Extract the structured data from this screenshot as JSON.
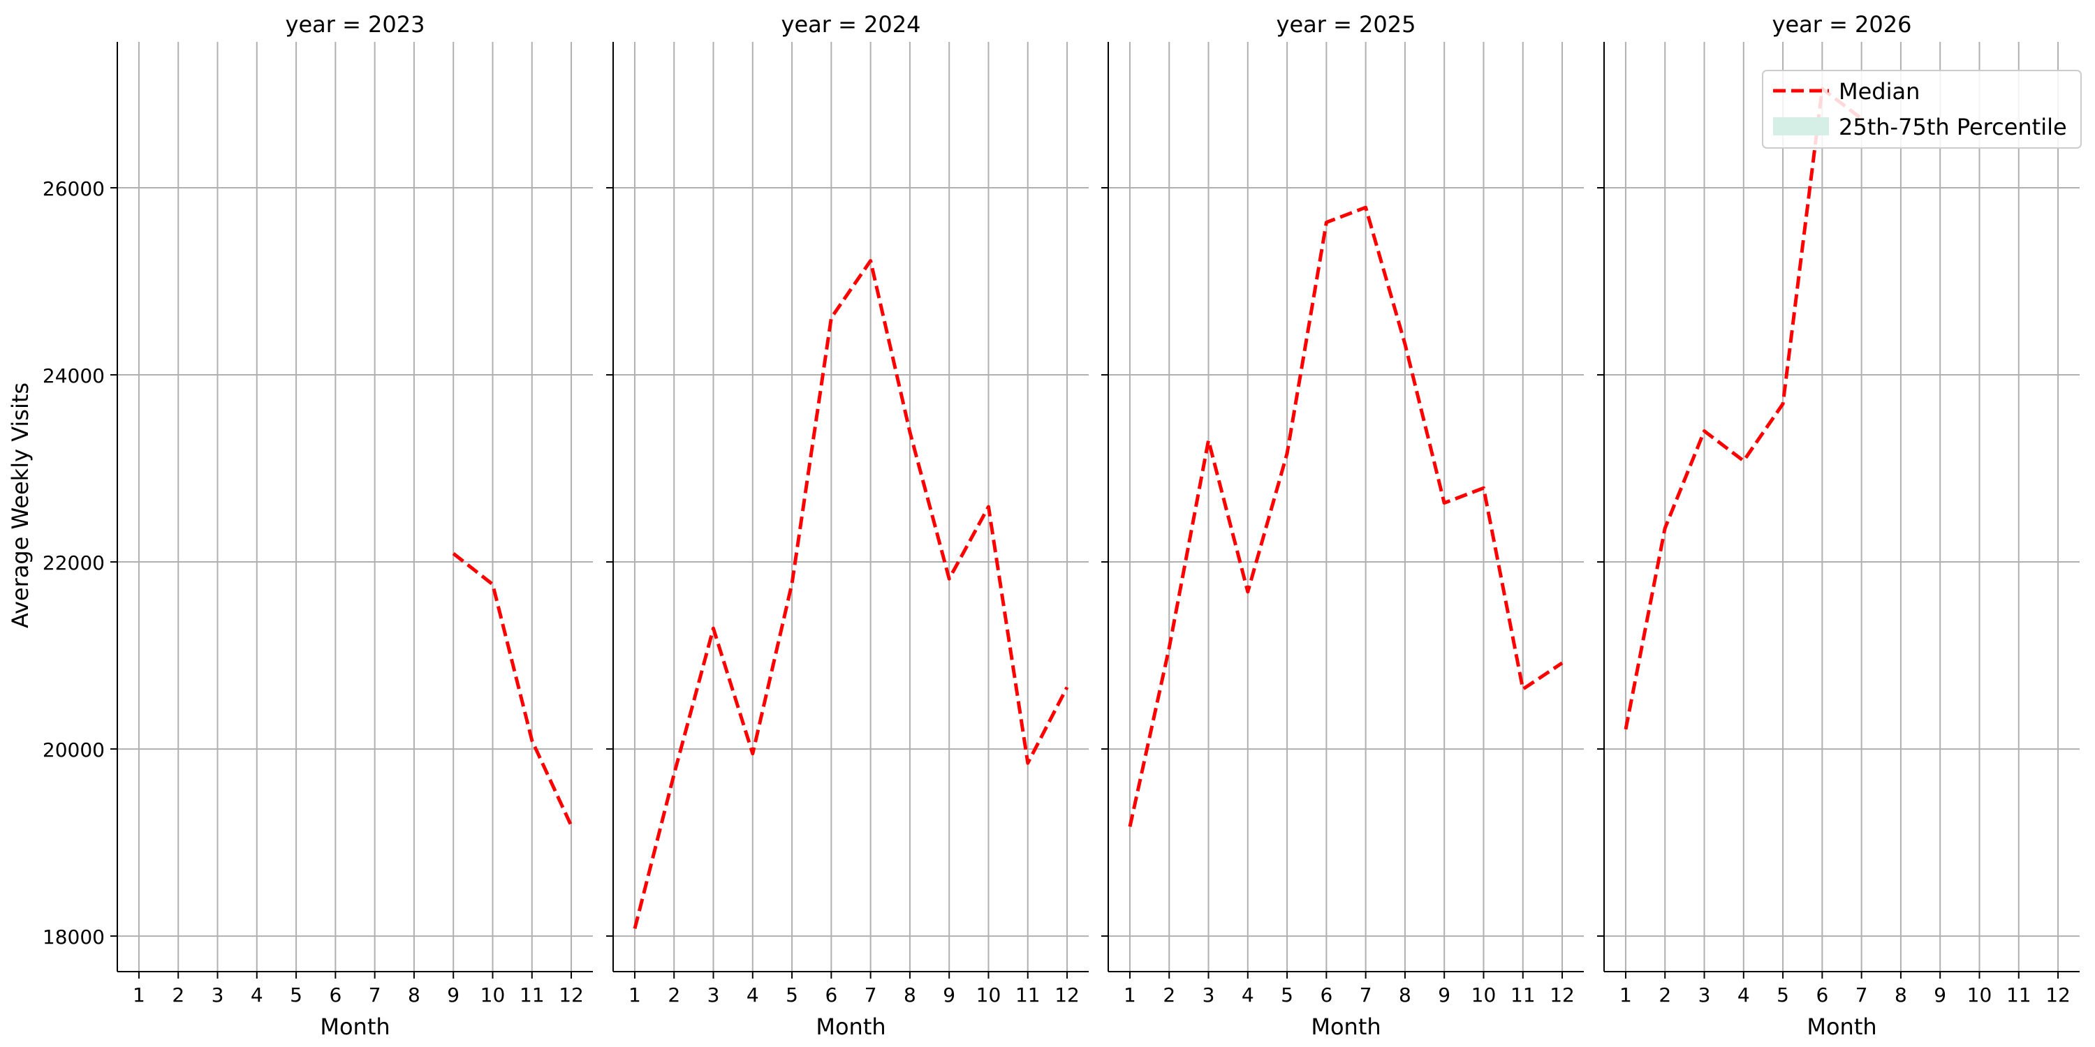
{
  "chart_data": {
    "type": "line",
    "facet_title_prefix": "year = ",
    "xlabel": "Month",
    "ylabel": "Average Weekly Visits",
    "x_ticks": [
      1,
      2,
      3,
      4,
      5,
      6,
      7,
      8,
      9,
      10,
      11,
      12
    ],
    "y_ticks": [
      18000,
      20000,
      22000,
      24000,
      26000
    ],
    "ylim": [
      17620,
      27560
    ],
    "xlim": [
      0.45,
      12.55
    ],
    "grid": true,
    "legend": {
      "placement": "top-right",
      "entries": [
        {
          "label": "Median",
          "style": "dashed-line",
          "color": "#ff0000"
        },
        {
          "label": "25th-75th Percentile",
          "style": "band",
          "color": "#d5eee6"
        }
      ]
    },
    "panels": [
      {
        "year": "2023",
        "series": [
          {
            "name": "Median",
            "x": [
              9,
              10,
              11,
              12
            ],
            "y": [
              22090,
              21760,
              20090,
              19180
            ]
          }
        ]
      },
      {
        "year": "2024",
        "series": [
          {
            "name": "Median",
            "x": [
              1,
              2,
              3,
              4,
              5,
              6,
              7,
              8,
              9,
              10,
              11,
              12
            ],
            "y": [
              18080,
              19730,
              21290,
              19950,
              21770,
              24610,
              25220,
              23390,
              21820,
              22590,
              19850,
              20660
            ]
          }
        ]
      },
      {
        "year": "2025",
        "series": [
          {
            "name": "Median",
            "x": [
              1,
              2,
              3,
              4,
              5,
              6,
              7,
              8,
              9,
              10,
              11,
              12
            ],
            "y": [
              19170,
              21080,
              23300,
              21680,
              23160,
              25630,
              25790,
              24330,
              22630,
              22790,
              20640,
              20920
            ]
          }
        ]
      },
      {
        "year": "2026",
        "series": [
          {
            "name": "Median",
            "x": [
              1,
              2,
              3,
              4,
              5,
              6,
              7
            ],
            "y": [
              20210,
              22360,
              23400,
              23080,
              23690,
              27060,
              26740
            ]
          }
        ]
      }
    ],
    "colors": {
      "median": "#ff0000",
      "grid": "#b0b0b0",
      "axis": "#000000",
      "band": "#d5eee6"
    }
  }
}
